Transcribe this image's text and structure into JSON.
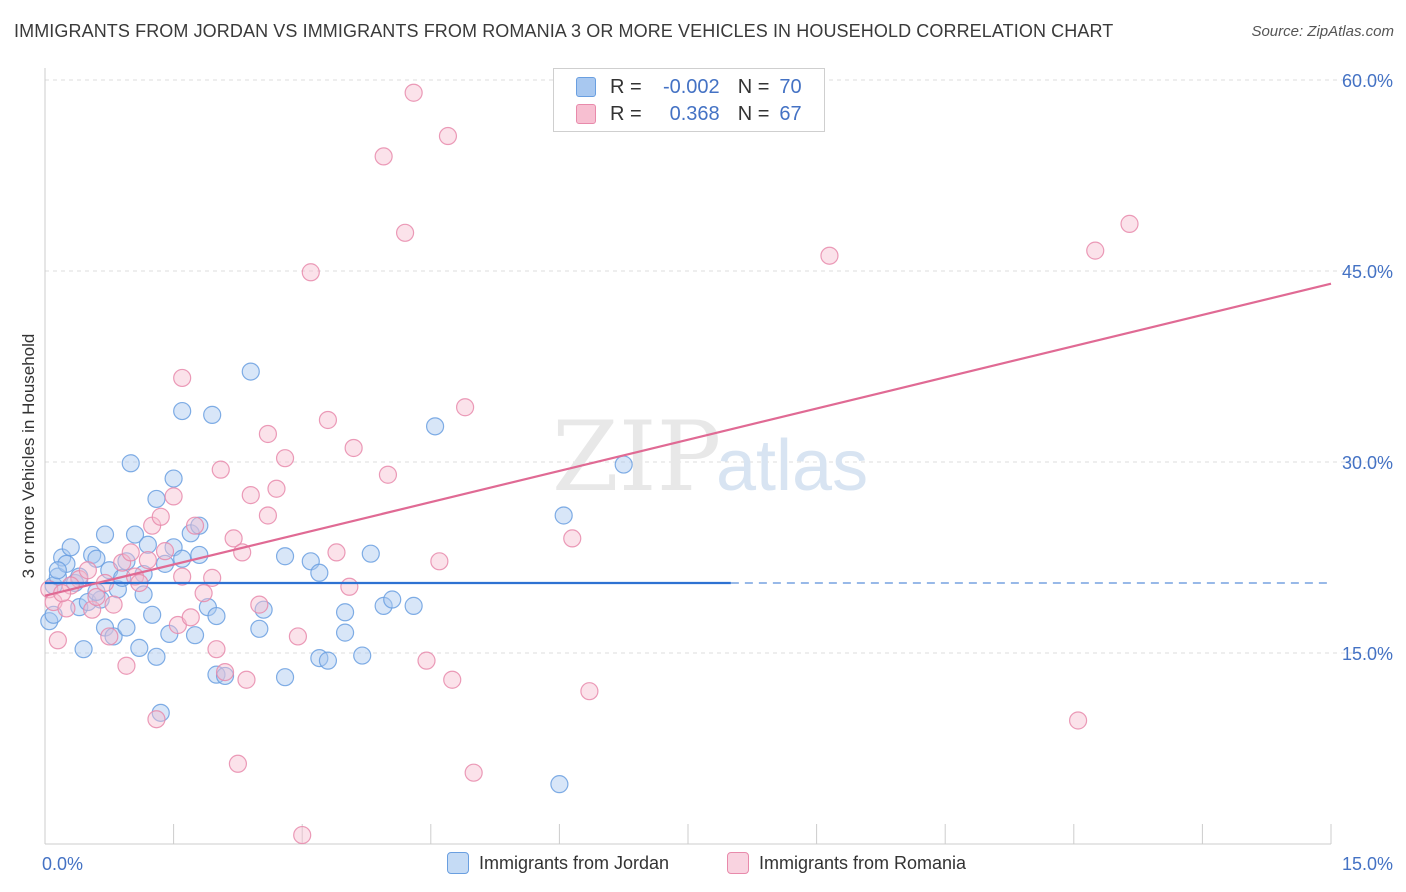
{
  "title": "IMMIGRANTS FROM JORDAN VS IMMIGRANTS FROM ROMANIA 3 OR MORE VEHICLES IN HOUSEHOLD CORRELATION CHART",
  "source": "Source: ZipAtlas.com",
  "watermark": {
    "zip": "ZIP",
    "atlas": "atlas"
  },
  "legend": {
    "rows": [
      {
        "r_label": "R =",
        "r_value": "-0.002",
        "n_label": "N =",
        "n_value": "70",
        "color": "#a8c8f0",
        "border": "#6a9fe0"
      },
      {
        "r_label": "R =",
        "r_value": "0.368",
        "n_label": "N =",
        "n_value": "67",
        "color": "#f7bfd1",
        "border": "#e88aab"
      }
    ]
  },
  "bottom_legend": [
    {
      "label": "Immigrants from Jordan",
      "color": "#c5dbf5",
      "border": "#6a9fe0"
    },
    {
      "label": "Immigrants from Romania",
      "color": "#f9d3e0",
      "border": "#e88aab"
    }
  ],
  "chart_data": {
    "type": "scatter",
    "ylabel": "3 or more Vehicles in Household",
    "xlim": [
      0,
      15
    ],
    "ylim": [
      0,
      60
    ],
    "x_tick_labels": [
      {
        "value": 0,
        "label": "0.0%"
      },
      {
        "value": 15,
        "label": "15.0%"
      }
    ],
    "y_tick_labels": [
      {
        "value": 15,
        "label": "15.0%"
      },
      {
        "value": 30,
        "label": "30.0%"
      },
      {
        "value": 45,
        "label": "45.0%"
      },
      {
        "value": 60,
        "label": "60.0%"
      }
    ],
    "grid": true,
    "series": [
      {
        "name": "Immigrants from Jordan",
        "color": "#6a9fe0",
        "fill": "#a8c8f0",
        "trend": {
          "x0": 0,
          "y0": 20.5,
          "x1": 8.0,
          "y1": 20.5,
          "dashed_to": 15
        },
        "points": [
          [
            0.05,
            17.5
          ],
          [
            0.1,
            20.3
          ],
          [
            0.1,
            18.0
          ],
          [
            0.15,
            21.0
          ],
          [
            0.2,
            22.5
          ],
          [
            0.25,
            22.0
          ],
          [
            0.3,
            23.3
          ],
          [
            0.35,
            20.5
          ],
          [
            0.4,
            18.6
          ],
          [
            0.45,
            15.3
          ],
          [
            0.5,
            19.0
          ],
          [
            0.55,
            22.7
          ],
          [
            0.6,
            22.4
          ],
          [
            0.65,
            19.2
          ],
          [
            0.7,
            17.0
          ],
          [
            0.7,
            24.3
          ],
          [
            0.75,
            21.5
          ],
          [
            0.8,
            16.3
          ],
          [
            0.85,
            20.0
          ],
          [
            0.9,
            20.9
          ],
          [
            0.95,
            22.2
          ],
          [
            0.95,
            17.0
          ],
          [
            1.0,
            29.9
          ],
          [
            1.05,
            24.3
          ],
          [
            1.1,
            15.4
          ],
          [
            1.15,
            21.2
          ],
          [
            1.15,
            19.6
          ],
          [
            1.2,
            23.5
          ],
          [
            1.25,
            18.0
          ],
          [
            1.3,
            14.7
          ],
          [
            1.3,
            27.1
          ],
          [
            1.35,
            10.3
          ],
          [
            1.4,
            22.0
          ],
          [
            1.45,
            16.5
          ],
          [
            1.5,
            28.7
          ],
          [
            1.5,
            23.3
          ],
          [
            1.6,
            34.0
          ],
          [
            1.6,
            22.4
          ],
          [
            1.7,
            24.4
          ],
          [
            1.75,
            16.4
          ],
          [
            1.8,
            22.7
          ],
          [
            1.8,
            25.0
          ],
          [
            1.9,
            18.6
          ],
          [
            1.95,
            33.7
          ],
          [
            2.0,
            17.9
          ],
          [
            2.0,
            13.3
          ],
          [
            2.1,
            13.2
          ],
          [
            2.4,
            37.1
          ],
          [
            2.5,
            16.9
          ],
          [
            2.55,
            18.4
          ],
          [
            2.8,
            22.6
          ],
          [
            2.8,
            13.1
          ],
          [
            3.1,
            22.2
          ],
          [
            3.2,
            21.3
          ],
          [
            3.2,
            14.6
          ],
          [
            3.3,
            14.4
          ],
          [
            3.5,
            18.2
          ],
          [
            3.5,
            16.6
          ],
          [
            3.7,
            14.8
          ],
          [
            3.8,
            22.8
          ],
          [
            3.95,
            18.7
          ],
          [
            4.05,
            19.2
          ],
          [
            4.3,
            18.7
          ],
          [
            4.55,
            32.8
          ],
          [
            6.05,
            25.8
          ],
          [
            6.75,
            29.8
          ],
          [
            6.0,
            4.7
          ],
          [
            0.15,
            21.5
          ],
          [
            0.6,
            19.8
          ],
          [
            0.4,
            21.0
          ]
        ]
      },
      {
        "name": "Immigrants from Romania",
        "color": "#e88aab",
        "fill": "#f7bfd1",
        "trend": {
          "x0": 0,
          "y0": 19.5,
          "x1": 15,
          "y1": 44.0
        },
        "points": [
          [
            0.05,
            20.0
          ],
          [
            0.1,
            19.0
          ],
          [
            0.15,
            16.0
          ],
          [
            0.25,
            18.5
          ],
          [
            0.4,
            20.8
          ],
          [
            0.5,
            21.5
          ],
          [
            0.55,
            18.4
          ],
          [
            0.6,
            19.4
          ],
          [
            0.7,
            20.5
          ],
          [
            0.75,
            16.3
          ],
          [
            0.8,
            18.8
          ],
          [
            0.9,
            22.1
          ],
          [
            0.95,
            14.0
          ],
          [
            1.0,
            22.9
          ],
          [
            1.05,
            21.0
          ],
          [
            1.1,
            20.5
          ],
          [
            1.2,
            22.3
          ],
          [
            1.25,
            25.0
          ],
          [
            1.3,
            9.8
          ],
          [
            1.35,
            25.7
          ],
          [
            1.4,
            23.0
          ],
          [
            1.5,
            27.3
          ],
          [
            1.55,
            17.2
          ],
          [
            1.6,
            21.0
          ],
          [
            1.6,
            36.6
          ],
          [
            1.7,
            17.8
          ],
          [
            1.75,
            25.0
          ],
          [
            1.85,
            19.7
          ],
          [
            1.95,
            20.9
          ],
          [
            2.0,
            15.3
          ],
          [
            2.05,
            29.4
          ],
          [
            2.1,
            13.5
          ],
          [
            2.2,
            24.0
          ],
          [
            2.25,
            6.3
          ],
          [
            2.3,
            22.9
          ],
          [
            2.35,
            12.9
          ],
          [
            2.4,
            27.4
          ],
          [
            2.5,
            18.8
          ],
          [
            2.6,
            25.8
          ],
          [
            2.6,
            32.2
          ],
          [
            2.7,
            27.9
          ],
          [
            2.8,
            30.3
          ],
          [
            2.95,
            16.3
          ],
          [
            3.0,
            0.7
          ],
          [
            3.1,
            44.9
          ],
          [
            3.3,
            33.3
          ],
          [
            3.4,
            22.9
          ],
          [
            3.55,
            20.2
          ],
          [
            3.6,
            31.1
          ],
          [
            3.95,
            54.0
          ],
          [
            4.0,
            29.0
          ],
          [
            4.2,
            48.0
          ],
          [
            4.3,
            59.0
          ],
          [
            4.45,
            14.4
          ],
          [
            4.6,
            22.2
          ],
          [
            4.7,
            55.6
          ],
          [
            4.75,
            12.9
          ],
          [
            4.9,
            34.3
          ],
          [
            5.0,
            5.6
          ],
          [
            6.15,
            24.0
          ],
          [
            6.35,
            12.0
          ],
          [
            9.15,
            46.2
          ],
          [
            12.05,
            9.7
          ],
          [
            12.25,
            46.6
          ],
          [
            12.65,
            48.7
          ],
          [
            0.3,
            20.3
          ],
          [
            0.2,
            19.7
          ]
        ]
      }
    ]
  }
}
